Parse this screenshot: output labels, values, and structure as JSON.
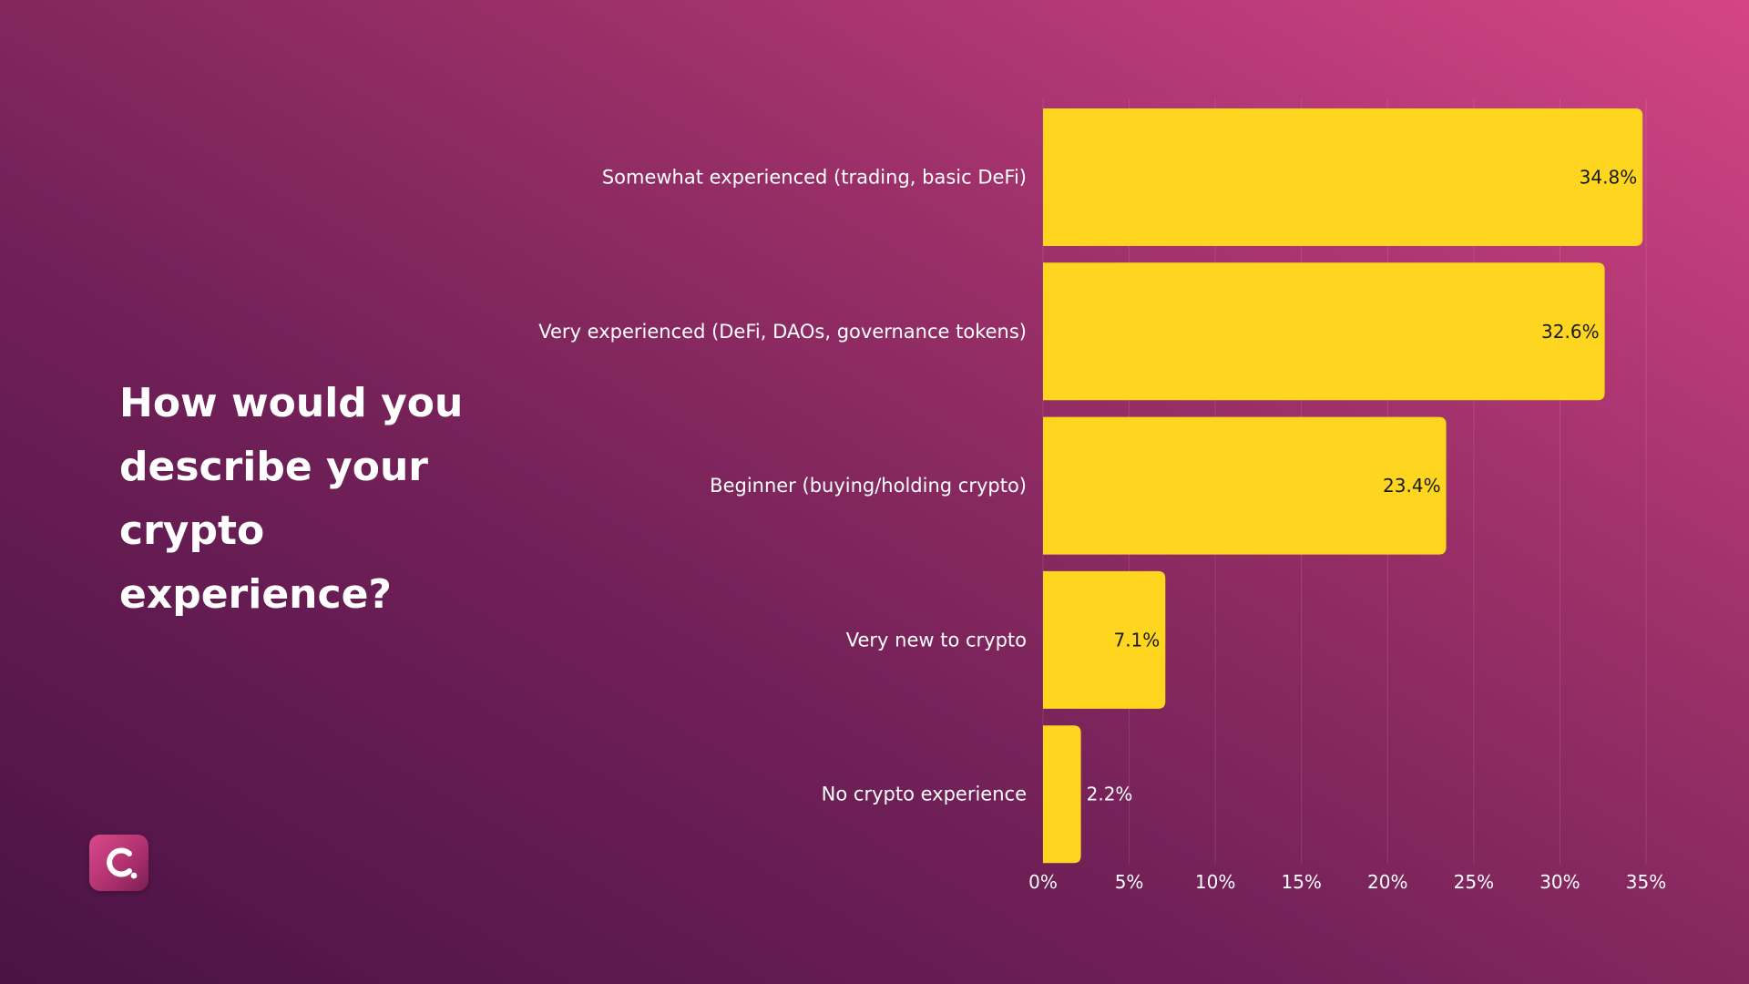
{
  "question": "How would you describe your crypto experience?",
  "colors": {
    "bar": "#FED620",
    "bar_label": "#1a1a1a",
    "text": "#ffffff",
    "gridline": "rgba(255,255,255,0.12)"
  },
  "logo": {
    "icon": "c-dot-logo-icon"
  },
  "chart_data": {
    "type": "bar",
    "orientation": "horizontal",
    "title": "How would you describe your crypto experience?",
    "categories": [
      "Somewhat experienced (trading, basic DeFi)",
      "Very experienced (DeFi, DAOs, governance tokens)",
      "Beginner (buying/holding crypto)",
      "Very new to crypto",
      "No crypto experience"
    ],
    "values": [
      34.8,
      32.6,
      23.4,
      7.1,
      2.2
    ],
    "value_labels": [
      "34.8%",
      "32.6%",
      "23.4%",
      "7.1%",
      "2.2%"
    ],
    "xlim": [
      0,
      35
    ],
    "xticks": [
      0,
      5,
      10,
      15,
      20,
      25,
      30,
      35
    ],
    "xtick_labels": [
      "0%",
      "5%",
      "10%",
      "15%",
      "20%",
      "25%",
      "30%",
      "35%"
    ],
    "xlabel": "",
    "ylabel": "",
    "grid": true,
    "legend": "none"
  }
}
